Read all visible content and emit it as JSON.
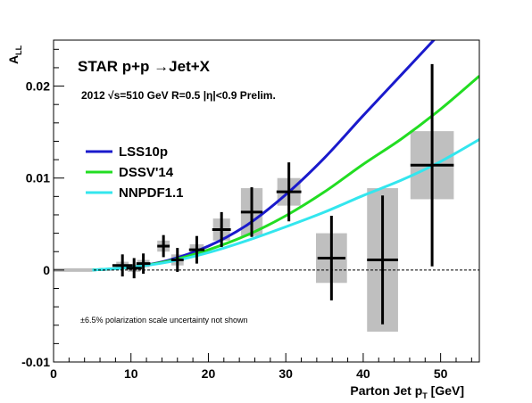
{
  "chart_data": {
    "type": "scatter",
    "title": "STAR p+p →Jet+X",
    "subtitle": "2012   √s=510 GeV  R=0.5  |η|<0.9  Prelim.",
    "note": "±6.5% polarization scale uncertainty not shown",
    "xlabel_main": "Parton Jet p",
    "xlabel_sub": "T",
    "xlabel_unit": " [GeV]",
    "ylabel_main": "A",
    "ylabel_sub": "LL",
    "xlim": [
      0,
      55
    ],
    "ylim": [
      -0.01,
      0.025
    ],
    "x_ticks": [
      0,
      10,
      20,
      30,
      40,
      50
    ],
    "x_tick_labels": [
      "0",
      "10",
      "20",
      "30",
      "40",
      "50"
    ],
    "y_ticks": [
      -0.01,
      0,
      0.01,
      0.02
    ],
    "y_tick_labels": [
      "-0.01",
      "0",
      "0.01",
      "0.02"
    ],
    "legend": {
      "placement": "left",
      "entries": [
        {
          "label": "LSS10p",
          "color": "#1a1acc"
        },
        {
          "label": "DSSV'14",
          "color": "#22dd22"
        },
        {
          "label": "NNPDF1.1",
          "color": "#33e6ee"
        }
      ]
    },
    "curves": [
      {
        "name": "LSS10p",
        "color": "#1a1acc",
        "x": [
          5,
          10,
          15,
          20,
          25,
          30,
          35,
          40,
          45,
          50
        ],
        "y": [
          0,
          0.0003,
          0.0011,
          0.0026,
          0.0049,
          0.0082,
          0.0122,
          0.0168,
          0.0213,
          0.0258
        ]
      },
      {
        "name": "DSSV'14",
        "color": "#22dd22",
        "x": [
          5,
          10,
          15,
          20,
          25,
          30,
          35,
          40,
          45,
          50,
          55
        ],
        "y": [
          0,
          0.0003,
          0.001,
          0.0022,
          0.0038,
          0.0059,
          0.0085,
          0.0115,
          0.0143,
          0.0175,
          0.0211
        ]
      },
      {
        "name": "NNPDF1.1",
        "color": "#33e6ee",
        "x": [
          5,
          10,
          15,
          20,
          25,
          30,
          35,
          40,
          45,
          50,
          55
        ],
        "y": [
          0,
          0.0003,
          0.0009,
          0.0019,
          0.0032,
          0.0047,
          0.0063,
          0.0081,
          0.0098,
          0.0118,
          0.0142
        ]
      }
    ],
    "points": [
      {
        "x": 8.9,
        "y": 0.0005,
        "xerr": 1.3,
        "yerr": 0.0012,
        "sys_w": 0.8,
        "sys_h": 0.0004
      },
      {
        "x": 10.4,
        "y": 0.0002,
        "xerr": 1.0,
        "yerr": 0.0011,
        "sys_w": 0.8,
        "sys_h": 0.0004
      },
      {
        "x": 11.6,
        "y": 0.0007,
        "xerr": 0.9,
        "yerr": 0.0011,
        "sys_w": 0.8,
        "sys_h": 0.0004
      },
      {
        "x": 14.2,
        "y": 0.0026,
        "xerr": 0.8,
        "yerr": 0.0012,
        "sys_w": 0.8,
        "sys_h": 0.0006
      },
      {
        "x": 16.0,
        "y": 0.0011,
        "xerr": 0.8,
        "yerr": 0.0013,
        "sys_w": 0.8,
        "sys_h": 0.0006
      },
      {
        "x": 18.5,
        "y": 0.0022,
        "xerr": 1.0,
        "yerr": 0.0015,
        "sys_w": 0.9,
        "sys_h": 0.0006
      },
      {
        "x": 21.7,
        "y": 0.0044,
        "xerr": 1.2,
        "yerr": 0.0019,
        "sys_w": 1.1,
        "sys_h": 0.0012
      },
      {
        "x": 25.6,
        "y": 0.0063,
        "xerr": 1.4,
        "yerr": 0.0027,
        "sys_w": 1.4,
        "sys_h": 0.0026
      },
      {
        "x": 30.4,
        "y": 0.0085,
        "xerr": 1.6,
        "yerr": 0.0032,
        "sys_w": 1.5,
        "sys_h": 0.0015
      },
      {
        "x": 35.9,
        "y": 0.0013,
        "xerr": 1.8,
        "yerr": 0.0046,
        "sys_w": 2.0,
        "sys_h": 0.0027
      },
      {
        "x": 42.5,
        "y": 0.0011,
        "xerr": 2.0,
        "yerr": 0.007,
        "sys_w": 2.0,
        "sys_h": 0.0078
      },
      {
        "x": 48.9,
        "y": 0.0114,
        "xerr": 2.8,
        "yerr": 0.011,
        "sys_w": 2.8,
        "sys_h": 0.0037
      }
    ],
    "grid": false
  }
}
